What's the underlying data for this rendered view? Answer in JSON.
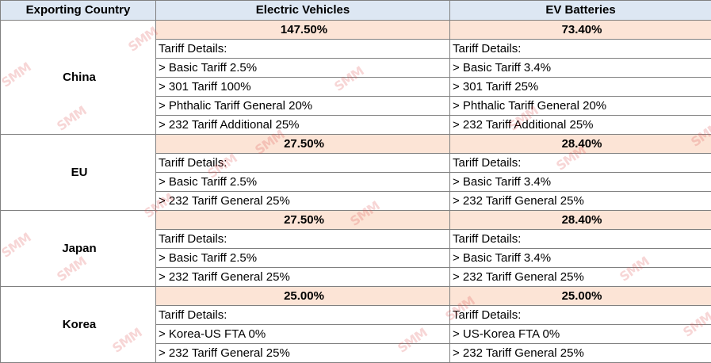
{
  "headers": {
    "country": "Exporting Country",
    "ev": "Electric Vehicles",
    "batteries": "EV Batteries"
  },
  "watermark": "SMM",
  "countries": [
    {
      "name": "China",
      "ev_rate": "147.50%",
      "bat_rate": "73.40%",
      "ev_details": [
        "Tariff Details:",
        "> Basic Tariff 2.5%",
        "> 301 Tariff 100%",
        "> Phthalic Tariff General 20%",
        "> 232 Tariff Additional 25%"
      ],
      "bat_details": [
        "Tariff Details:",
        "> Basic Tariff 3.4%",
        "> 301 Tariff 25%",
        "> Phthalic Tariff General 20%",
        "> 232 Tariff Additional 25%"
      ]
    },
    {
      "name": "EU",
      "ev_rate": "27.50%",
      "bat_rate": "28.40%",
      "ev_details": [
        "Tariff Details:",
        "> Basic Tariff 2.5%",
        "> 232 Tariff General 25%"
      ],
      "bat_details": [
        "Tariff Details:",
        "> Basic Tariff 3.4%",
        "> 232 Tariff General 25%"
      ]
    },
    {
      "name": "Japan",
      "ev_rate": "27.50%",
      "bat_rate": "28.40%",
      "ev_details": [
        "Tariff Details:",
        "> Basic Tariff 2.5%",
        "> 232 Tariff General 25%"
      ],
      "bat_details": [
        "Tariff Details:",
        "> Basic Tariff 3.4%",
        "> 232 Tariff General 25%"
      ]
    },
    {
      "name": "Korea",
      "ev_rate": "25.00%",
      "bat_rate": "25.00%",
      "ev_details": [
        "Tariff Details:",
        "> Korea-US FTA 0%",
        "> 232 Tariff General 25%"
      ],
      "bat_details": [
        "Tariff Details:",
        "> US-Korea FTA 0%",
        "> 232 Tariff General 25%"
      ]
    }
  ]
}
